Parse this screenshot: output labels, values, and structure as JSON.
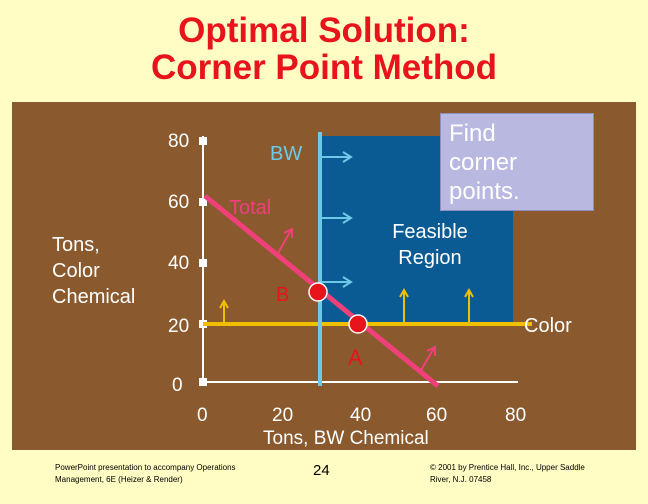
{
  "title_line1": "Optimal Solution:",
  "title_line2": "Corner Point Method",
  "y_axis": {
    "label_lines": [
      "Tons,",
      "Color",
      "Chemical"
    ],
    "ticks": [
      "80",
      "60",
      "40",
      "20",
      "0"
    ]
  },
  "x_axis": {
    "label": "Tons, BW Chemical",
    "ticks": [
      "0",
      "20",
      "40",
      "60",
      "80"
    ]
  },
  "constraints": {
    "bw_label": "BW",
    "total_label": "Total",
    "color_label": "Color"
  },
  "feasible_region": [
    "Feasible",
    "Region"
  ],
  "points": {
    "a_label": "A",
    "b_label": "B"
  },
  "callout_lines": [
    "Find",
    "corner",
    "points."
  ],
  "footer": {
    "left_lines": [
      "PowerPoint presentation to accompany Operations",
      "Management, 6E (Heizer & Render)"
    ],
    "page": "24",
    "right_lines": [
      "© 2001 by Prentice Hall, Inc., Upper Saddle",
      "River, N.J. 07458"
    ]
  },
  "colors": {
    "background": "#fffcc4",
    "panel": "#8a5a2e",
    "title": "#e8141c",
    "feasible": "#0a5a94",
    "bw_line": "#6ec8e8",
    "total_line": "#f0407a",
    "color_line": "#f0c000",
    "point": "#e8141c",
    "callout": "#b8b8e0"
  }
}
